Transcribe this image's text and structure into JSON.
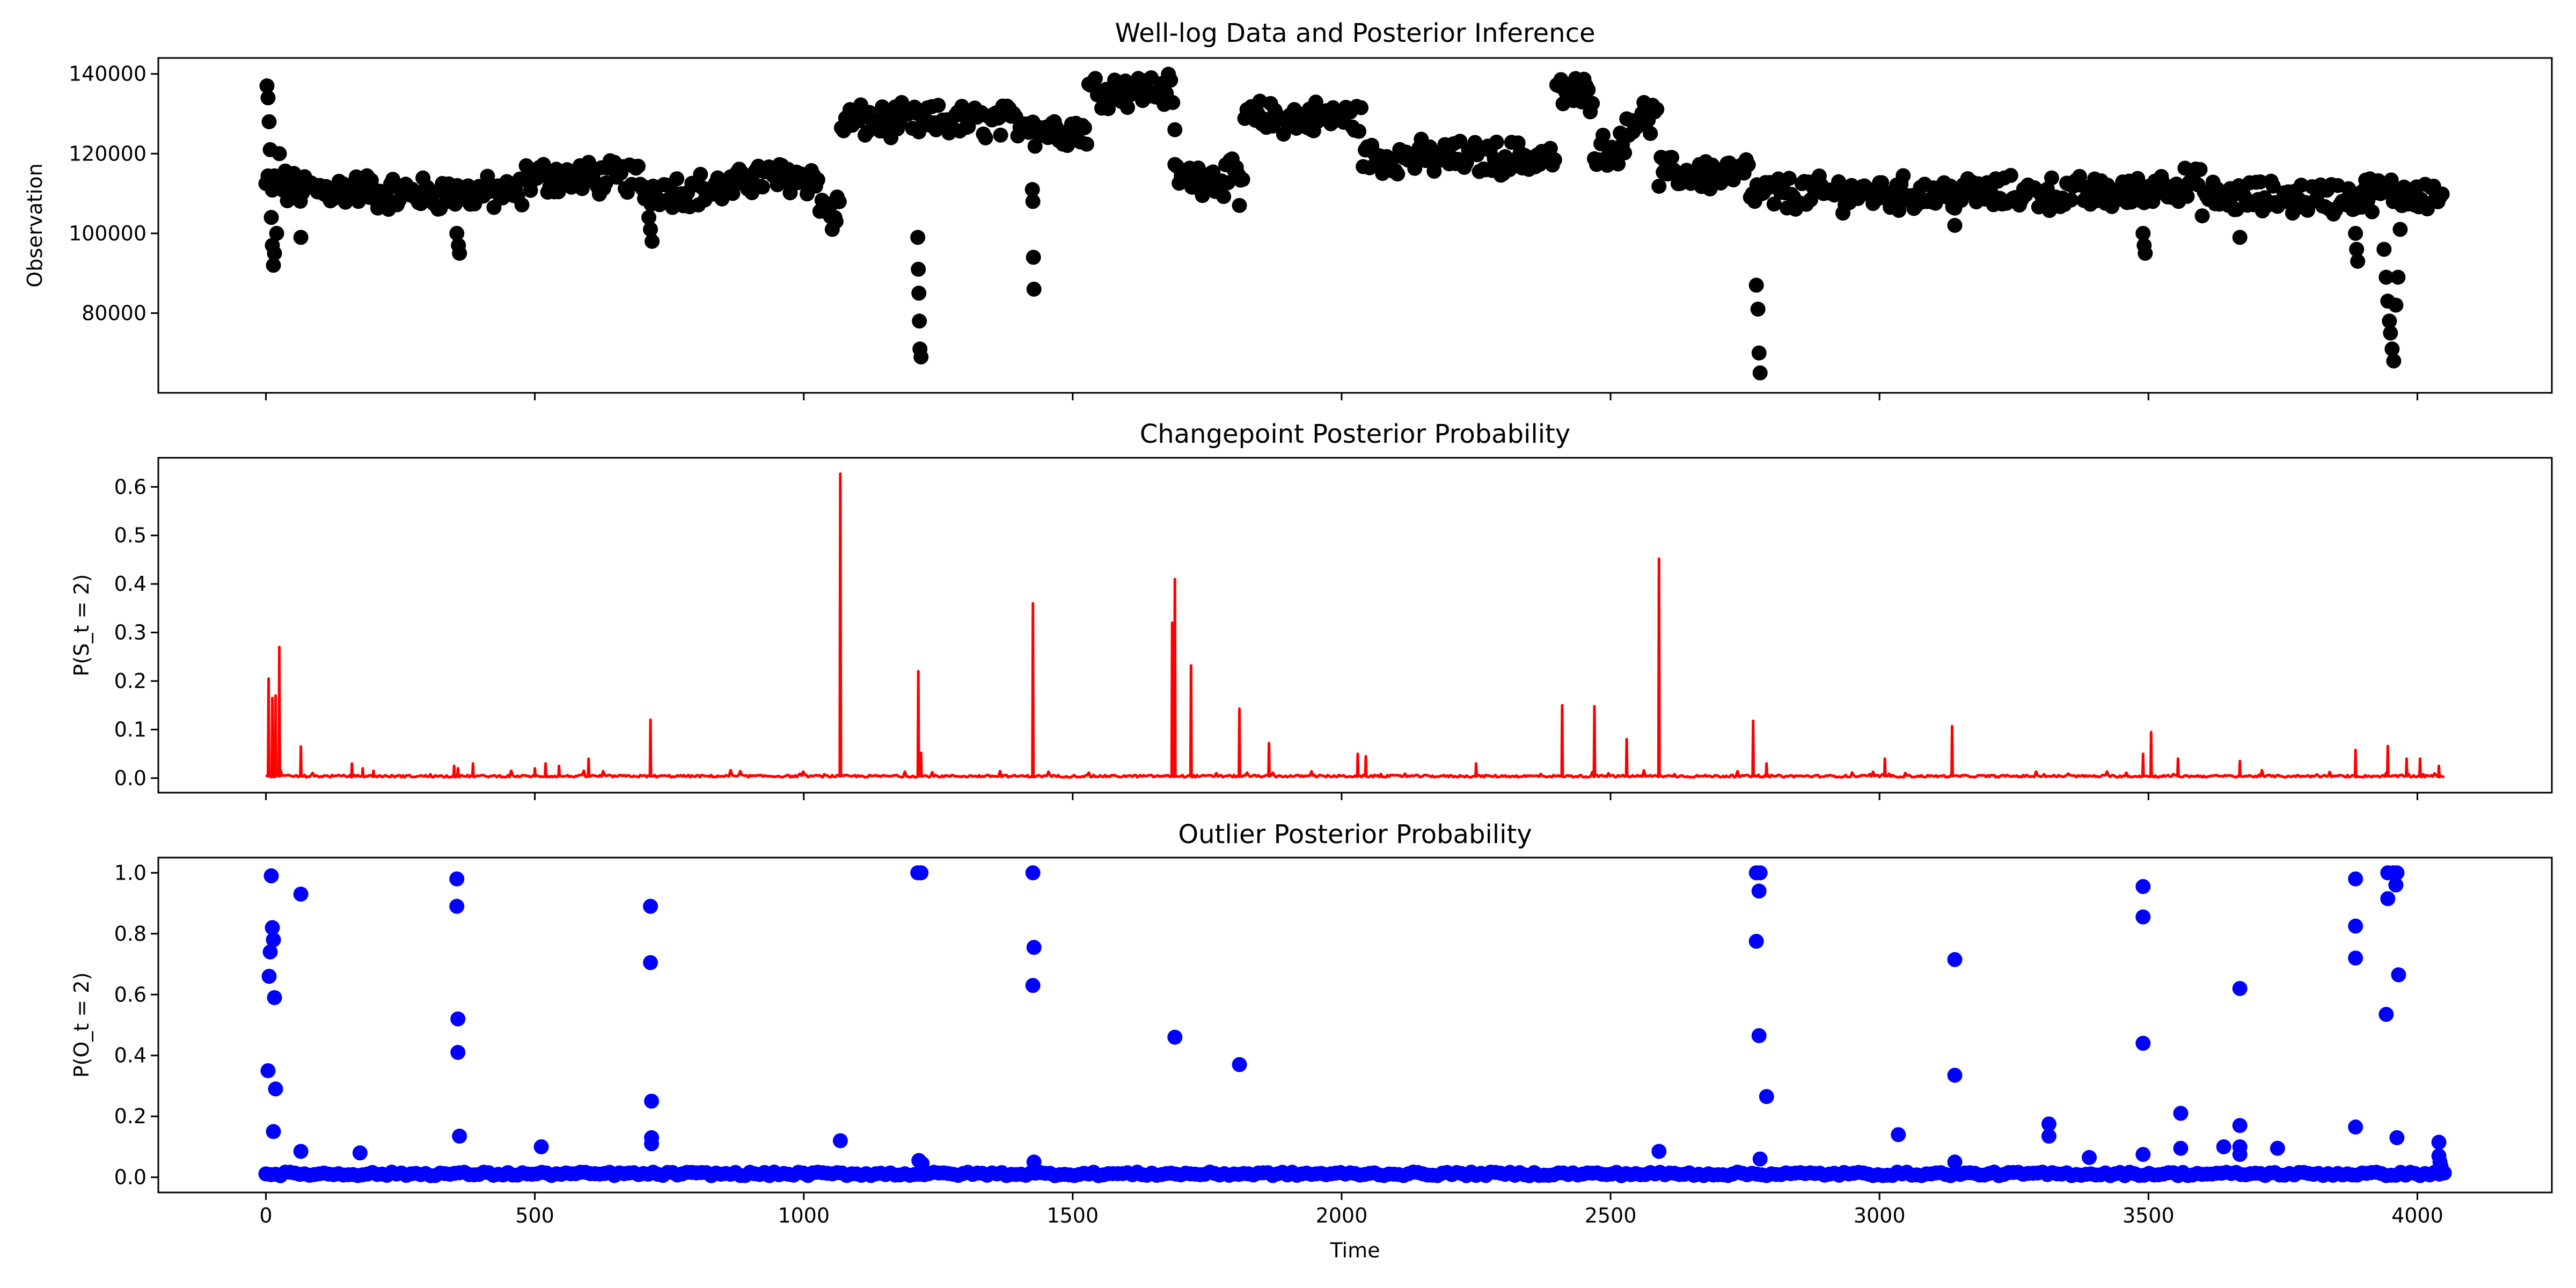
{
  "chart_data": [
    {
      "type": "scatter",
      "title": "Well-log Data and Posterior Inference",
      "xlabel": "",
      "ylabel": "Observation",
      "xlim": [
        -200,
        4250
      ],
      "ylim": [
        60000,
        144000
      ],
      "xticks": [
        0,
        500,
        1000,
        1500,
        2000,
        2500,
        3000,
        3500,
        4000
      ],
      "show_xtick_labels": false,
      "yticks": [
        80000,
        100000,
        120000,
        140000
      ],
      "ytick_labels": [
        "80000",
        "100000",
        "120000",
        "140000"
      ],
      "grid": false,
      "color": "#000000",
      "segments": [
        {
          "x": [
            0,
            40
          ],
          "y": 112000
        },
        {
          "x": [
            40,
            200
          ],
          "y": 111000
        },
        {
          "x": [
            200,
            480
          ],
          "y": 110000
        },
        {
          "x": [
            480,
            700
          ],
          "y": 114000
        },
        {
          "x": [
            700,
            880
          ],
          "y": 111000
        },
        {
          "x": [
            880,
            1030
          ],
          "y": 114000
        },
        {
          "x": [
            1030,
            1070
          ],
          "y": 106000
        },
        {
          "x": [
            1070,
            1430
          ],
          "y": 128000
        },
        {
          "x": [
            1430,
            1530
          ],
          "y": 126000
        },
        {
          "x": [
            1530,
            1690
          ],
          "y": 136000
        },
        {
          "x": [
            1690,
            1820
          ],
          "y": 114000
        },
        {
          "x": [
            1820,
            2040
          ],
          "y": 129000
        },
        {
          "x": [
            2040,
            2400
          ],
          "y": 119000
        },
        {
          "x": [
            2400,
            2470
          ],
          "y": 135000
        },
        {
          "x": [
            2470,
            2530
          ],
          "y": 121000
        },
        {
          "x": [
            2530,
            2590
          ],
          "y": 129000
        },
        {
          "x": [
            2590,
            2760
          ],
          "y": 115000
        },
        {
          "x": [
            2760,
            3500
          ],
          "y": 110000
        },
        {
          "x": [
            3500,
            3600
          ],
          "y": 112000
        },
        {
          "x": [
            3600,
            3900
          ],
          "y": 109000
        },
        {
          "x": [
            3900,
            4050
          ],
          "y": 110000
        }
      ],
      "outliers": [
        {
          "x": 2,
          "y": 137000
        },
        {
          "x": 4,
          "y": 134000
        },
        {
          "x": 6,
          "y": 128000
        },
        {
          "x": 8,
          "y": 121000
        },
        {
          "x": 10,
          "y": 104000
        },
        {
          "x": 12,
          "y": 97000
        },
        {
          "x": 14,
          "y": 92000
        },
        {
          "x": 16,
          "y": 95000
        },
        {
          "x": 20,
          "y": 100000
        },
        {
          "x": 25,
          "y": 120000
        },
        {
          "x": 65,
          "y": 99000
        },
        {
          "x": 355,
          "y": 100000
        },
        {
          "x": 358,
          "y": 97000
        },
        {
          "x": 360,
          "y": 95000
        },
        {
          "x": 712,
          "y": 104000
        },
        {
          "x": 715,
          "y": 101000
        },
        {
          "x": 718,
          "y": 98000
        },
        {
          "x": 1053,
          "y": 101000
        },
        {
          "x": 1060,
          "y": 103000
        },
        {
          "x": 1212,
          "y": 99000
        },
        {
          "x": 1213,
          "y": 91000
        },
        {
          "x": 1214,
          "y": 85000
        },
        {
          "x": 1215,
          "y": 78000
        },
        {
          "x": 1216,
          "y": 71000
        },
        {
          "x": 1218,
          "y": 69000
        },
        {
          "x": 1425,
          "y": 111000
        },
        {
          "x": 1426,
          "y": 108000
        },
        {
          "x": 1427,
          "y": 94000
        },
        {
          "x": 1428,
          "y": 86000
        },
        {
          "x": 1690,
          "y": 126000
        },
        {
          "x": 1810,
          "y": 107000
        },
        {
          "x": 2771,
          "y": 87000
        },
        {
          "x": 2774,
          "y": 81000
        },
        {
          "x": 2776,
          "y": 70000
        },
        {
          "x": 2778,
          "y": 65000
        },
        {
          "x": 3140,
          "y": 102000
        },
        {
          "x": 3490,
          "y": 100000
        },
        {
          "x": 3492,
          "y": 97000
        },
        {
          "x": 3494,
          "y": 95000
        },
        {
          "x": 3670,
          "y": 99000
        },
        {
          "x": 3885,
          "y": 100000
        },
        {
          "x": 3887,
          "y": 96000
        },
        {
          "x": 3889,
          "y": 93000
        },
        {
          "x": 3938,
          "y": 96000
        },
        {
          "x": 3942,
          "y": 89000
        },
        {
          "x": 3945,
          "y": 83000
        },
        {
          "x": 3948,
          "y": 78000
        },
        {
          "x": 3950,
          "y": 75000
        },
        {
          "x": 3953,
          "y": 71000
        },
        {
          "x": 3956,
          "y": 68000
        },
        {
          "x": 3960,
          "y": 82000
        },
        {
          "x": 3964,
          "y": 89000
        },
        {
          "x": 3968,
          "y": 101000
        },
        {
          "x": 3972,
          "y": 107000
        }
      ]
    },
    {
      "type": "line",
      "title": "Changepoint Posterior Probability",
      "xlabel": "",
      "ylabel": "P(S_t = 2)",
      "xlim": [
        -200,
        4250
      ],
      "ylim": [
        -0.03,
        0.66
      ],
      "xticks": [
        0,
        500,
        1000,
        1500,
        2000,
        2500,
        3000,
        3500,
        4000
      ],
      "show_xtick_labels": false,
      "yticks": [
        0.0,
        0.1,
        0.2,
        0.3,
        0.4,
        0.5,
        0.6
      ],
      "ytick_labels": [
        "0.0",
        "0.1",
        "0.2",
        "0.3",
        "0.4",
        "0.5",
        "0.6"
      ],
      "grid": false,
      "color": "#ff0000",
      "x_range": [
        0,
        4050
      ],
      "baseline": 0.004,
      "peaks": [
        {
          "x": 5,
          "y": 0.205
        },
        {
          "x": 12,
          "y": 0.165
        },
        {
          "x": 18,
          "y": 0.17
        },
        {
          "x": 25,
          "y": 0.27
        },
        {
          "x": 65,
          "y": 0.065
        },
        {
          "x": 160,
          "y": 0.03
        },
        {
          "x": 180,
          "y": 0.02
        },
        {
          "x": 200,
          "y": 0.015
        },
        {
          "x": 350,
          "y": 0.025
        },
        {
          "x": 357,
          "y": 0.02
        },
        {
          "x": 385,
          "y": 0.03
        },
        {
          "x": 500,
          "y": 0.02
        },
        {
          "x": 520,
          "y": 0.03
        },
        {
          "x": 545,
          "y": 0.025
        },
        {
          "x": 600,
          "y": 0.04
        },
        {
          "x": 715,
          "y": 0.12
        },
        {
          "x": 1068,
          "y": 0.627
        },
        {
          "x": 1213,
          "y": 0.22
        },
        {
          "x": 1218,
          "y": 0.052
        },
        {
          "x": 1426,
          "y": 0.36
        },
        {
          "x": 1685,
          "y": 0.32
        },
        {
          "x": 1690,
          "y": 0.41
        },
        {
          "x": 1720,
          "y": 0.232
        },
        {
          "x": 1810,
          "y": 0.143
        },
        {
          "x": 1865,
          "y": 0.072
        },
        {
          "x": 2030,
          "y": 0.05
        },
        {
          "x": 2045,
          "y": 0.045
        },
        {
          "x": 2250,
          "y": 0.03
        },
        {
          "x": 2410,
          "y": 0.15
        },
        {
          "x": 2470,
          "y": 0.148
        },
        {
          "x": 2530,
          "y": 0.08
        },
        {
          "x": 2590,
          "y": 0.452
        },
        {
          "x": 2765,
          "y": 0.118
        },
        {
          "x": 2790,
          "y": 0.03
        },
        {
          "x": 3010,
          "y": 0.04
        },
        {
          "x": 3135,
          "y": 0.107
        },
        {
          "x": 3490,
          "y": 0.05
        },
        {
          "x": 3505,
          "y": 0.095
        },
        {
          "x": 3555,
          "y": 0.04
        },
        {
          "x": 3670,
          "y": 0.035
        },
        {
          "x": 3885,
          "y": 0.058
        },
        {
          "x": 3945,
          "y": 0.066
        },
        {
          "x": 3980,
          "y": 0.04
        },
        {
          "x": 4005,
          "y": 0.04
        },
        {
          "x": 4040,
          "y": 0.025
        }
      ]
    },
    {
      "type": "scatter",
      "title": "Outlier Posterior Probability",
      "xlabel": "Time",
      "ylabel": "P(O_t = 2)",
      "xlim": [
        -200,
        4250
      ],
      "ylim": [
        -0.05,
        1.05
      ],
      "xticks": [
        0,
        500,
        1000,
        1500,
        2000,
        2500,
        3000,
        3500,
        4000
      ],
      "show_xtick_labels": true,
      "xtick_labels": [
        "0",
        "500",
        "1000",
        "1500",
        "2000",
        "2500",
        "3000",
        "3500",
        "4000"
      ],
      "yticks": [
        0.0,
        0.2,
        0.4,
        0.6,
        0.8,
        1.0
      ],
      "ytick_labels": [
        "0.0",
        "0.2",
        "0.4",
        "0.6",
        "0.8",
        "1.0"
      ],
      "grid": false,
      "color": "#0000ff",
      "x_range": [
        0,
        4050
      ],
      "baseline": 0.005,
      "points": [
        {
          "x": 10,
          "y": 0.99
        },
        {
          "x": 12,
          "y": 0.82
        },
        {
          "x": 14,
          "y": 0.78
        },
        {
          "x": 8,
          "y": 0.74
        },
        {
          "x": 6,
          "y": 0.66
        },
        {
          "x": 16,
          "y": 0.59
        },
        {
          "x": 4,
          "y": 0.35
        },
        {
          "x": 18,
          "y": 0.29
        },
        {
          "x": 14,
          "y": 0.15
        },
        {
          "x": 65,
          "y": 0.93
        },
        {
          "x": 65,
          "y": 0.085
        },
        {
          "x": 175,
          "y": 0.08
        },
        {
          "x": 355,
          "y": 0.98
        },
        {
          "x": 355,
          "y": 0.89
        },
        {
          "x": 357,
          "y": 0.52
        },
        {
          "x": 357,
          "y": 0.41
        },
        {
          "x": 360,
          "y": 0.135
        },
        {
          "x": 512,
          "y": 0.1
        },
        {
          "x": 715,
          "y": 0.89
        },
        {
          "x": 715,
          "y": 0.705
        },
        {
          "x": 717,
          "y": 0.25
        },
        {
          "x": 717,
          "y": 0.13
        },
        {
          "x": 717,
          "y": 0.11
        },
        {
          "x": 1068,
          "y": 0.12
        },
        {
          "x": 1212,
          "y": 1.0
        },
        {
          "x": 1218,
          "y": 1.0
        },
        {
          "x": 1214,
          "y": 0.055
        },
        {
          "x": 1220,
          "y": 0.045
        },
        {
          "x": 1426,
          "y": 1.0
        },
        {
          "x": 1428,
          "y": 0.755
        },
        {
          "x": 1426,
          "y": 0.63
        },
        {
          "x": 1428,
          "y": 0.05
        },
        {
          "x": 1690,
          "y": 0.46
        },
        {
          "x": 1810,
          "y": 0.37
        },
        {
          "x": 2590,
          "y": 0.085
        },
        {
          "x": 2771,
          "y": 1.0
        },
        {
          "x": 2778,
          "y": 1.0
        },
        {
          "x": 2776,
          "y": 0.94
        },
        {
          "x": 2771,
          "y": 0.775
        },
        {
          "x": 2776,
          "y": 0.465
        },
        {
          "x": 2790,
          "y": 0.265
        },
        {
          "x": 2778,
          "y": 0.06
        },
        {
          "x": 3035,
          "y": 0.14
        },
        {
          "x": 3140,
          "y": 0.715
        },
        {
          "x": 3140,
          "y": 0.335
        },
        {
          "x": 3140,
          "y": 0.05
        },
        {
          "x": 3315,
          "y": 0.175
        },
        {
          "x": 3315,
          "y": 0.135
        },
        {
          "x": 3390,
          "y": 0.065
        },
        {
          "x": 3490,
          "y": 0.955
        },
        {
          "x": 3490,
          "y": 0.855
        },
        {
          "x": 3490,
          "y": 0.44
        },
        {
          "x": 3490,
          "y": 0.075
        },
        {
          "x": 3560,
          "y": 0.21
        },
        {
          "x": 3560,
          "y": 0.095
        },
        {
          "x": 3640,
          "y": 0.1
        },
        {
          "x": 3670,
          "y": 0.62
        },
        {
          "x": 3670,
          "y": 0.17
        },
        {
          "x": 3670,
          "y": 0.1
        },
        {
          "x": 3670,
          "y": 0.075
        },
        {
          "x": 3740,
          "y": 0.095
        },
        {
          "x": 3885,
          "y": 0.98
        },
        {
          "x": 3885,
          "y": 0.825
        },
        {
          "x": 3885,
          "y": 0.72
        },
        {
          "x": 3885,
          "y": 0.165
        },
        {
          "x": 3945,
          "y": 1.0
        },
        {
          "x": 3955,
          "y": 1.0
        },
        {
          "x": 3962,
          "y": 1.0
        },
        {
          "x": 3960,
          "y": 0.96
        },
        {
          "x": 3945,
          "y": 0.915
        },
        {
          "x": 3965,
          "y": 0.665
        },
        {
          "x": 3942,
          "y": 0.535
        },
        {
          "x": 3962,
          "y": 0.13
        },
        {
          "x": 4040,
          "y": 0.115
        },
        {
          "x": 4040,
          "y": 0.07
        },
        {
          "x": 4042,
          "y": 0.05
        },
        {
          "x": 4044,
          "y": 0.035
        },
        {
          "x": 4046,
          "y": 0.02
        }
      ]
    }
  ]
}
